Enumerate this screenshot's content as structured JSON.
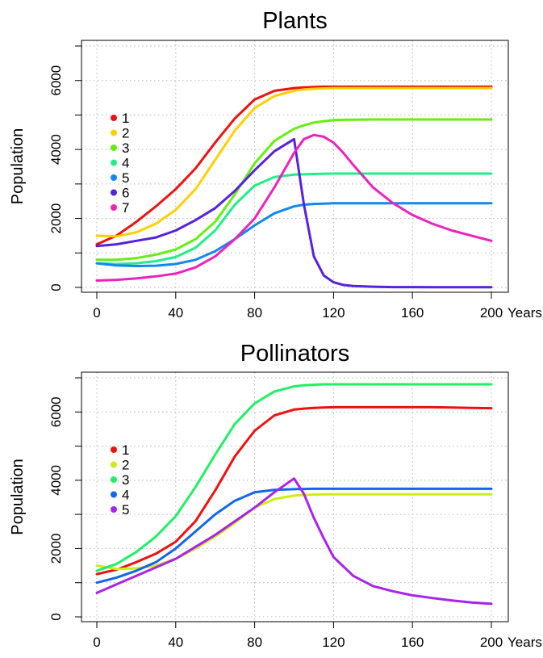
{
  "chart_data": [
    {
      "type": "line",
      "title": "Plants",
      "xlabel": "",
      "ylabel": "Population",
      "x_unit_label": "Years",
      "xlim": [
        0,
        200
      ],
      "ylim": [
        0,
        7000
      ],
      "xticks": [
        0,
        40,
        80,
        120,
        160,
        200
      ],
      "yticks": [
        0,
        2000,
        4000,
        6000
      ],
      "grid": true,
      "legend": "left",
      "x": [
        0,
        10,
        20,
        30,
        40,
        50,
        60,
        70,
        80,
        90,
        100,
        105,
        110,
        115,
        120,
        125,
        130,
        140,
        150,
        160,
        170,
        180,
        190,
        200
      ],
      "series": [
        {
          "name": "1",
          "color": "#ee1111",
          "values": [
            1250,
            1500,
            1900,
            2350,
            2850,
            3450,
            4200,
            4900,
            5450,
            5700,
            5780,
            5800,
            5810,
            5820,
            5820,
            5820,
            5820,
            5820,
            5820,
            5820,
            5820,
            5820,
            5820,
            5820
          ]
        },
        {
          "name": "2",
          "color": "#ffd000",
          "values": [
            1500,
            1480,
            1600,
            1850,
            2250,
            2850,
            3700,
            4550,
            5200,
            5550,
            5700,
            5740,
            5760,
            5770,
            5780,
            5780,
            5780,
            5780,
            5780,
            5780,
            5780,
            5780,
            5780,
            5780
          ]
        },
        {
          "name": "3",
          "color": "#66ee11",
          "values": [
            800,
            800,
            850,
            950,
            1100,
            1400,
            1900,
            2700,
            3600,
            4250,
            4600,
            4700,
            4780,
            4820,
            4850,
            4860,
            4865,
            4870,
            4870,
            4870,
            4870,
            4870,
            4870,
            4870
          ]
        },
        {
          "name": "4",
          "color": "#22ee88",
          "values": [
            700,
            680,
            700,
            760,
            880,
            1150,
            1650,
            2400,
            2950,
            3200,
            3270,
            3280,
            3290,
            3295,
            3300,
            3300,
            3300,
            3300,
            3300,
            3300,
            3300,
            3300,
            3300,
            3300
          ]
        },
        {
          "name": "5",
          "color": "#1188ee",
          "values": [
            700,
            640,
            620,
            630,
            680,
            800,
            1050,
            1400,
            1800,
            2150,
            2350,
            2400,
            2420,
            2430,
            2440,
            2440,
            2440,
            2440,
            2440,
            2440,
            2440,
            2440,
            2440,
            2440
          ]
        },
        {
          "name": "6",
          "color": "#5522dd",
          "values": [
            1200,
            1250,
            1350,
            1450,
            1650,
            1950,
            2300,
            2800,
            3400,
            3950,
            4300,
            2400,
            900,
            350,
            150,
            70,
            40,
            20,
            10,
            10,
            5,
            5,
            5,
            5
          ]
        },
        {
          "name": "7",
          "color": "#ee22bb",
          "values": [
            200,
            220,
            260,
            320,
            400,
            580,
            900,
            1400,
            2000,
            2900,
            3900,
            4300,
            4420,
            4370,
            4200,
            3900,
            3550,
            2900,
            2450,
            2100,
            1850,
            1650,
            1500,
            1350
          ]
        }
      ]
    },
    {
      "type": "line",
      "title": "Pollinators",
      "xlabel": "",
      "ylabel": "Population",
      "x_unit_label": "Years",
      "xlim": [
        0,
        200
      ],
      "ylim": [
        0,
        7000
      ],
      "xticks": [
        0,
        40,
        80,
        120,
        160,
        200
      ],
      "yticks": [
        0,
        2000,
        4000,
        6000
      ],
      "grid": true,
      "legend": "left",
      "x": [
        0,
        10,
        20,
        30,
        40,
        50,
        60,
        70,
        80,
        90,
        100,
        105,
        110,
        115,
        120,
        130,
        140,
        150,
        160,
        170,
        180,
        190,
        200
      ],
      "series": [
        {
          "name": "1",
          "color": "#ee1111",
          "values": [
            1250,
            1380,
            1600,
            1850,
            2200,
            2800,
            3700,
            4700,
            5450,
            5900,
            6070,
            6100,
            6120,
            6130,
            6140,
            6140,
            6140,
            6140,
            6140,
            6140,
            6130,
            6120,
            6110
          ]
        },
        {
          "name": "2",
          "color": "#ccee11",
          "values": [
            1500,
            1400,
            1420,
            1500,
            1700,
            2000,
            2350,
            2750,
            3200,
            3450,
            3550,
            3570,
            3580,
            3590,
            3590,
            3590,
            3590,
            3590,
            3590,
            3590,
            3590,
            3590,
            3590
          ]
        },
        {
          "name": "3",
          "color": "#22ee66",
          "values": [
            1350,
            1550,
            1900,
            2350,
            2950,
            3800,
            4750,
            5650,
            6250,
            6600,
            6750,
            6780,
            6800,
            6810,
            6810,
            6810,
            6810,
            6810,
            6810,
            6810,
            6810,
            6810,
            6810
          ]
        },
        {
          "name": "4",
          "color": "#1166ee",
          "values": [
            1000,
            1150,
            1350,
            1600,
            2000,
            2500,
            3000,
            3400,
            3650,
            3720,
            3740,
            3745,
            3750,
            3750,
            3750,
            3750,
            3750,
            3750,
            3750,
            3750,
            3750,
            3750,
            3750
          ]
        },
        {
          "name": "5",
          "color": "#aa22ee",
          "values": [
            700,
            950,
            1200,
            1450,
            1700,
            2050,
            2400,
            2800,
            3200,
            3650,
            4050,
            3600,
            2900,
            2300,
            1750,
            1200,
            900,
            750,
            630,
            550,
            480,
            420,
            380
          ]
        }
      ]
    }
  ]
}
